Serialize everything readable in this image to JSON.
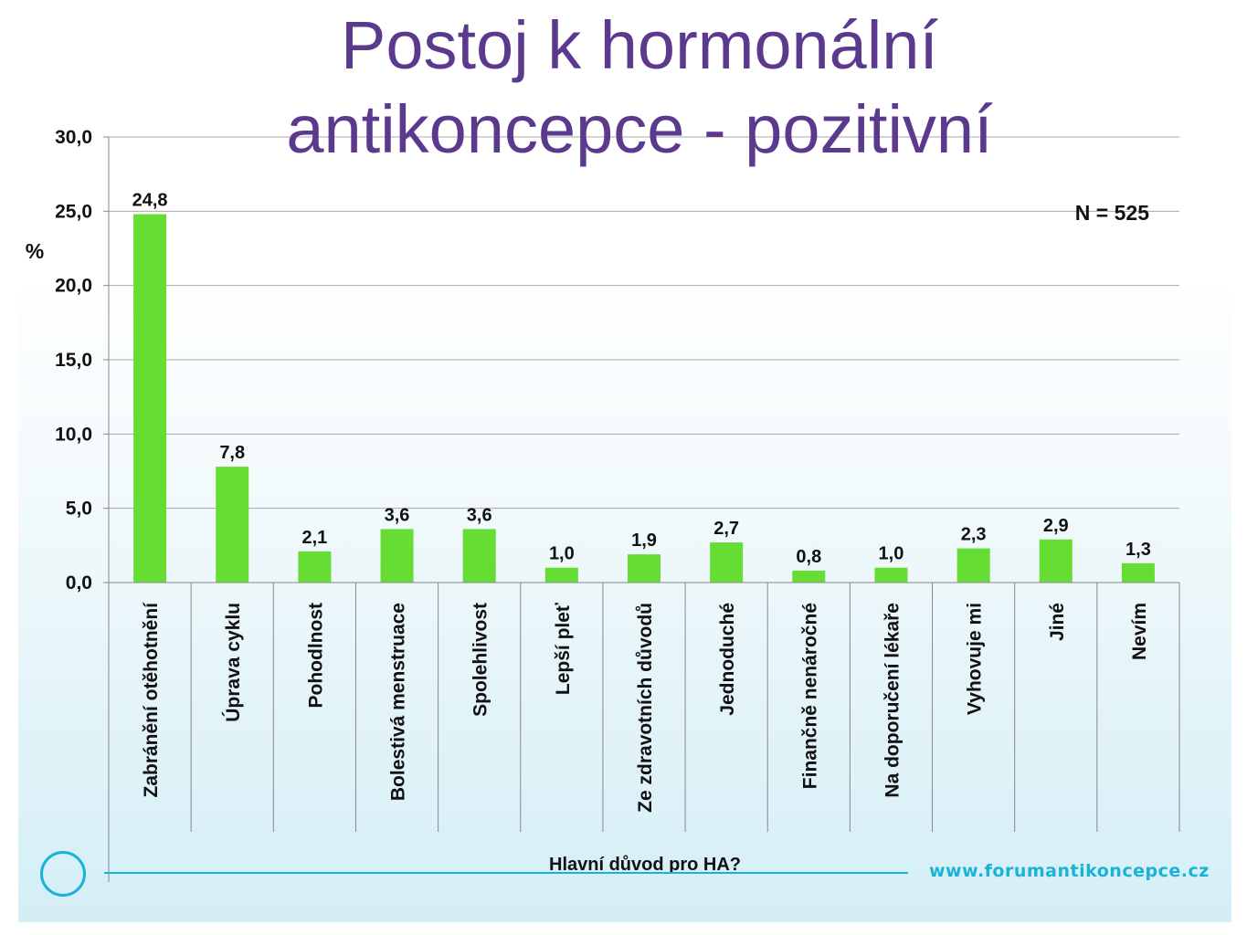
{
  "title_line1": "Postoj k hormonální",
  "title_line2": "antikoncepce - pozitivní",
  "brand": "www.forumantikoncepce.cz",
  "colors": {
    "bar": "#66dd33",
    "title": "#5b3a8e",
    "accent": "#1ab3d8"
  },
  "chart_data": {
    "type": "bar",
    "categories": [
      "Zabránění otěhotnění",
      "Úprava cyklu",
      "Pohodlnost",
      "Bolestivá menstruace",
      "Spolehlivost",
      "Lepší pleť",
      "Ze zdravotních důvodů",
      "Jednoduché",
      "Finančně nenáročné",
      "Na doporučení lékaře",
      "Vyhovuje mi",
      "Jiné",
      "Nevím"
    ],
    "values": [
      24.8,
      7.8,
      2.1,
      3.6,
      3.6,
      1.0,
      1.9,
      2.7,
      0.8,
      1.0,
      2.3,
      2.9,
      1.3
    ],
    "value_labels": [
      "24,8",
      "7,8",
      "2,1",
      "3,6",
      "3,6",
      "1,0",
      "1,9",
      "2,7",
      "0,8",
      "1,0",
      "2,3",
      "2,9",
      "1,3"
    ],
    "yticks": [
      0,
      5,
      10,
      15,
      20,
      25,
      30
    ],
    "ytick_labels": [
      "0,0",
      "5,0",
      "10,0",
      "15,0",
      "20,0",
      "25,0",
      "30,0"
    ],
    "ylim": [
      0,
      30
    ],
    "ylabel": "%",
    "xlabel": "Hlavní důvod pro HA?",
    "annotation": "N = 525",
    "grid": true,
    "legend": "none"
  }
}
